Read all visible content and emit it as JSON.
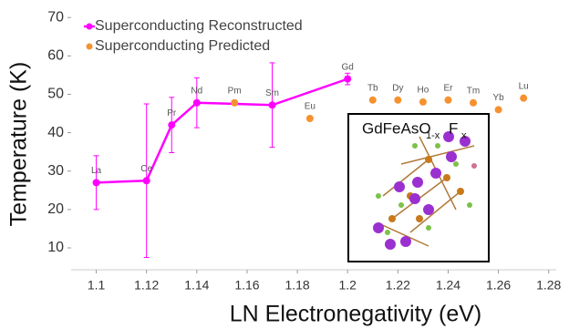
{
  "chart_data": {
    "type": "line",
    "x_label": "LN Electronegativity (eV)",
    "y_label": "Temperature (K)",
    "xlim": [
      1.09,
      1.283
    ],
    "ylim": [
      4.3,
      71
    ],
    "xticks": [
      1.1,
      1.12,
      1.14,
      1.16,
      1.18,
      1.2,
      1.22,
      1.24,
      1.26,
      1.28
    ],
    "yticks": [
      10,
      20,
      30,
      40,
      50,
      60,
      70
    ],
    "legend": "upper left",
    "series": [
      {
        "name": "Superconducting Reconstructed",
        "color": "#ff00ff",
        "mode": "line",
        "x": [
          1.1,
          1.12,
          1.13,
          1.14,
          1.17,
          1.2
        ],
        "values": [
          27,
          27.5,
          42,
          47.8,
          47.2,
          54
        ],
        "errors": [
          7,
          20,
          7.2,
          6.5,
          11,
          1.5
        ],
        "point_labels": [
          "La",
          "Ce",
          "Pr",
          "Nd",
          "Sm",
          "Gd"
        ]
      },
      {
        "name": "Superconducting Predicted",
        "color": "#f5922f",
        "mode": "scatter",
        "x": [
          1.155,
          1.185,
          1.21,
          1.22,
          1.23,
          1.24,
          1.25,
          1.26,
          1.27
        ],
        "values": [
          47.8,
          43.7,
          48.5,
          48.5,
          48,
          48.5,
          47.8,
          46,
          49
        ],
        "point_labels": [
          "Pm",
          "Eu",
          "Tb",
          "Dy",
          "Ho",
          "Er",
          "Tm",
          "Yb",
          "Lu"
        ]
      }
    ],
    "inset": {
      "formula": "GdFeAsO",
      "sub1": "1-x",
      "element": "F",
      "sub2": "x"
    }
  }
}
